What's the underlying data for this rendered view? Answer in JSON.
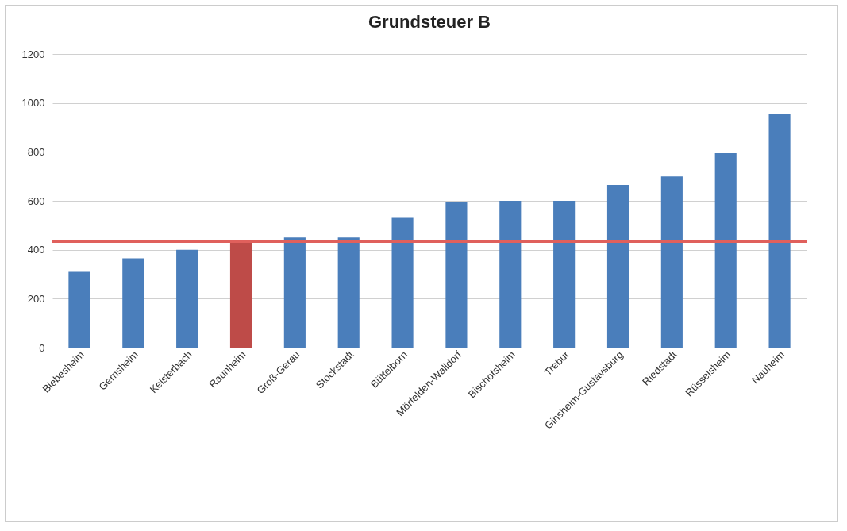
{
  "chart_data": {
    "type": "bar",
    "title": "Grundsteuer B",
    "categories": [
      "Biebesheim",
      "Gernsheim",
      "Kelsterbach",
      "Raunheim",
      "Groß-Gerau",
      "Stockstadt",
      "Büttelborn",
      "Mörfelden-Walldorf",
      "Bischofsheim",
      "Trebur",
      "Ginsheim-Gustavsburg",
      "Riedstadt",
      "Rüsselsheim",
      "Nauheim"
    ],
    "values": [
      310,
      365,
      400,
      430,
      450,
      450,
      530,
      595,
      600,
      600,
      665,
      700,
      795,
      955
    ],
    "colors": [
      "#4a7ebb",
      "#4a7ebb",
      "#4a7ebb",
      "#be4b48",
      "#4a7ebb",
      "#4a7ebb",
      "#4a7ebb",
      "#4a7ebb",
      "#4a7ebb",
      "#4a7ebb",
      "#4a7ebb",
      "#4a7ebb",
      "#4a7ebb",
      "#4a7ebb"
    ],
    "ylim": [
      0,
      1200
    ],
    "yticks": [
      0,
      200,
      400,
      600,
      800,
      1000,
      1200
    ],
    "grid": "y",
    "ref_lines": [
      {
        "axis": "y",
        "value": 433,
        "color": "#e0605c"
      }
    ]
  }
}
